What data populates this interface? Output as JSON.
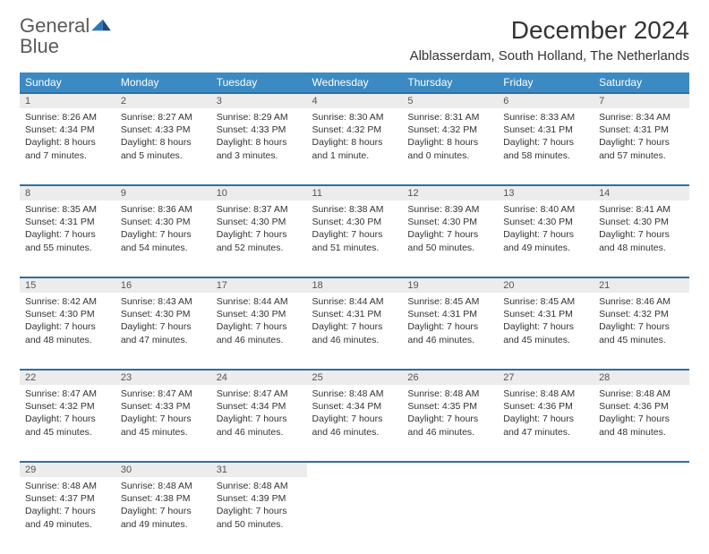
{
  "brand": {
    "name_gray": "General",
    "name_blue": "Blue"
  },
  "title": "December 2024",
  "location": "Alblasserdam, South Holland, The Netherlands",
  "colors": {
    "header_bg": "#3b8ac4",
    "header_text": "#ffffff",
    "row_border": "#2f6fa3",
    "daynum_bg": "#ececec",
    "body_text": "#333333",
    "logo_gray": "#5a5a5a",
    "logo_blue": "#2f77bb",
    "page_bg": "#ffffff"
  },
  "typography": {
    "title_fontsize": 28,
    "location_fontsize": 15,
    "header_fontsize": 12,
    "daynum_fontsize": 11,
    "cell_fontsize": 10.5
  },
  "days_of_week": [
    "Sunday",
    "Monday",
    "Tuesday",
    "Wednesday",
    "Thursday",
    "Friday",
    "Saturday"
  ],
  "weeks": [
    [
      {
        "n": 1,
        "sunrise": "8:26 AM",
        "sunset": "4:34 PM",
        "daylight": "8 hours and 7 minutes."
      },
      {
        "n": 2,
        "sunrise": "8:27 AM",
        "sunset": "4:33 PM",
        "daylight": "8 hours and 5 minutes."
      },
      {
        "n": 3,
        "sunrise": "8:29 AM",
        "sunset": "4:33 PM",
        "daylight": "8 hours and 3 minutes."
      },
      {
        "n": 4,
        "sunrise": "8:30 AM",
        "sunset": "4:32 PM",
        "daylight": "8 hours and 1 minute."
      },
      {
        "n": 5,
        "sunrise": "8:31 AM",
        "sunset": "4:32 PM",
        "daylight": "8 hours and 0 minutes."
      },
      {
        "n": 6,
        "sunrise": "8:33 AM",
        "sunset": "4:31 PM",
        "daylight": "7 hours and 58 minutes."
      },
      {
        "n": 7,
        "sunrise": "8:34 AM",
        "sunset": "4:31 PM",
        "daylight": "7 hours and 57 minutes."
      }
    ],
    [
      {
        "n": 8,
        "sunrise": "8:35 AM",
        "sunset": "4:31 PM",
        "daylight": "7 hours and 55 minutes."
      },
      {
        "n": 9,
        "sunrise": "8:36 AM",
        "sunset": "4:30 PM",
        "daylight": "7 hours and 54 minutes."
      },
      {
        "n": 10,
        "sunrise": "8:37 AM",
        "sunset": "4:30 PM",
        "daylight": "7 hours and 52 minutes."
      },
      {
        "n": 11,
        "sunrise": "8:38 AM",
        "sunset": "4:30 PM",
        "daylight": "7 hours and 51 minutes."
      },
      {
        "n": 12,
        "sunrise": "8:39 AM",
        "sunset": "4:30 PM",
        "daylight": "7 hours and 50 minutes."
      },
      {
        "n": 13,
        "sunrise": "8:40 AM",
        "sunset": "4:30 PM",
        "daylight": "7 hours and 49 minutes."
      },
      {
        "n": 14,
        "sunrise": "8:41 AM",
        "sunset": "4:30 PM",
        "daylight": "7 hours and 48 minutes."
      }
    ],
    [
      {
        "n": 15,
        "sunrise": "8:42 AM",
        "sunset": "4:30 PM",
        "daylight": "7 hours and 48 minutes."
      },
      {
        "n": 16,
        "sunrise": "8:43 AM",
        "sunset": "4:30 PM",
        "daylight": "7 hours and 47 minutes."
      },
      {
        "n": 17,
        "sunrise": "8:44 AM",
        "sunset": "4:30 PM",
        "daylight": "7 hours and 46 minutes."
      },
      {
        "n": 18,
        "sunrise": "8:44 AM",
        "sunset": "4:31 PM",
        "daylight": "7 hours and 46 minutes."
      },
      {
        "n": 19,
        "sunrise": "8:45 AM",
        "sunset": "4:31 PM",
        "daylight": "7 hours and 46 minutes."
      },
      {
        "n": 20,
        "sunrise": "8:45 AM",
        "sunset": "4:31 PM",
        "daylight": "7 hours and 45 minutes."
      },
      {
        "n": 21,
        "sunrise": "8:46 AM",
        "sunset": "4:32 PM",
        "daylight": "7 hours and 45 minutes."
      }
    ],
    [
      {
        "n": 22,
        "sunrise": "8:47 AM",
        "sunset": "4:32 PM",
        "daylight": "7 hours and 45 minutes."
      },
      {
        "n": 23,
        "sunrise": "8:47 AM",
        "sunset": "4:33 PM",
        "daylight": "7 hours and 45 minutes."
      },
      {
        "n": 24,
        "sunrise": "8:47 AM",
        "sunset": "4:34 PM",
        "daylight": "7 hours and 46 minutes."
      },
      {
        "n": 25,
        "sunrise": "8:48 AM",
        "sunset": "4:34 PM",
        "daylight": "7 hours and 46 minutes."
      },
      {
        "n": 26,
        "sunrise": "8:48 AM",
        "sunset": "4:35 PM",
        "daylight": "7 hours and 46 minutes."
      },
      {
        "n": 27,
        "sunrise": "8:48 AM",
        "sunset": "4:36 PM",
        "daylight": "7 hours and 47 minutes."
      },
      {
        "n": 28,
        "sunrise": "8:48 AM",
        "sunset": "4:36 PM",
        "daylight": "7 hours and 48 minutes."
      }
    ],
    [
      {
        "n": 29,
        "sunrise": "8:48 AM",
        "sunset": "4:37 PM",
        "daylight": "7 hours and 49 minutes."
      },
      {
        "n": 30,
        "sunrise": "8:48 AM",
        "sunset": "4:38 PM",
        "daylight": "7 hours and 49 minutes."
      },
      {
        "n": 31,
        "sunrise": "8:48 AM",
        "sunset": "4:39 PM",
        "daylight": "7 hours and 50 minutes."
      },
      null,
      null,
      null,
      null
    ]
  ],
  "labels": {
    "sunrise": "Sunrise:",
    "sunset": "Sunset:",
    "daylight": "Daylight:"
  }
}
